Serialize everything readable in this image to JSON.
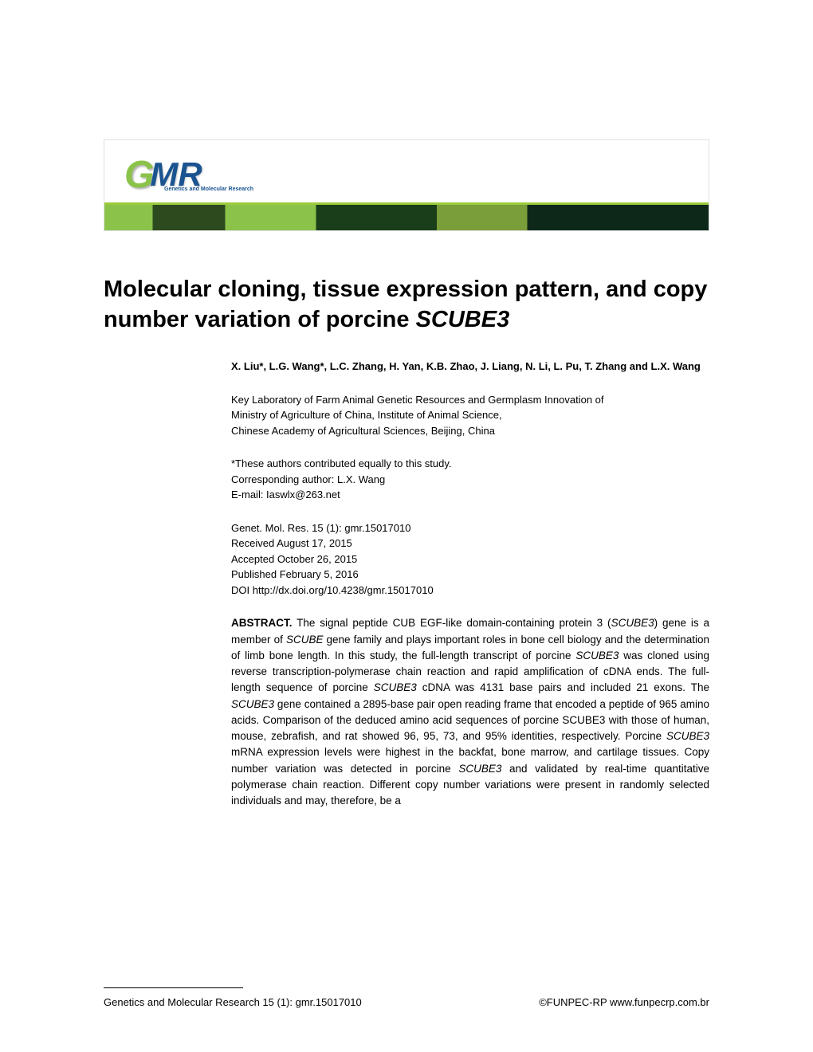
{
  "banner": {
    "logo_g": "G",
    "logo_mr": "MR",
    "logo_subtitle": "Genetics and Molecular Research"
  },
  "title": {
    "line1": "Molecular cloning, tissue expression pattern, and copy number variation of porcine ",
    "italic": "SCUBE3"
  },
  "authors": "X. Liu*, L.G. Wang*, L.C. Zhang, H. Yan, K.B. Zhao, J. Liang, N. Li, L. Pu, T. Zhang and L.X. Wang",
  "affiliation": {
    "line1": "Key Laboratory of Farm Animal Genetic Resources and Germplasm Innovation of",
    "line2": "Ministry of Agriculture of China, Institute of Animal Science,",
    "line3": "Chinese Academy of Agricultural Sciences, Beijing, China"
  },
  "correspondence": {
    "line1": "*These authors contributed equally to this study.",
    "line2": "Corresponding author: L.X. Wang",
    "line3": "E-mail: Iaswlx@263.net"
  },
  "citation": {
    "line1": "Genet. Mol. Res. 15 (1): gmr.15017010",
    "line2": "Received August 17, 2015",
    "line3": "Accepted October 26, 2015",
    "line4": "Published February 5, 2016",
    "line5": "DOI http://dx.doi.org/10.4238/gmr.15017010"
  },
  "abstract": {
    "label": "ABSTRACT.",
    "p1a": " The signal peptide CUB EGF-like domain-containing protein 3 (",
    "p1b": "SCUBE3",
    "p1c": ") gene is a member of ",
    "p1d": "SCUBE",
    "p1e": " gene family and plays important roles in bone cell biology and the determination of limb bone length. In this study, the full-length transcript of porcine ",
    "p1f": "SCUBE3",
    "p1g": " was cloned using reverse transcription-polymerase chain reaction and rapid amplification of cDNA ends. The full-length sequence of porcine ",
    "p1h": "SCUBE3",
    "p1i": " cDNA was 4131 base pairs and included 21 exons. The ",
    "p1j": "SCUBE3",
    "p1k": " gene contained a 2895-base pair open reading frame that encoded a peptide of 965 amino acids. Comparison of the deduced amino acid sequences of porcine SCUBE3 with those of human, mouse, zebrafish, and rat showed 96, 95, 73, and 95% identities, respectively. Porcine ",
    "p1l": "SCUBE3",
    "p1m": " mRNA expression levels were highest in the backfat, bone marrow, and cartilage tissues. Copy number variation was detected in porcine ",
    "p1n": "SCUBE3",
    "p1o": " and validated by real-time quantitative polymerase chain reaction. Different copy number variations were present in randomly selected individuals and may, therefore, be a"
  },
  "footer": {
    "left": "Genetics and Molecular Research 15 (1): gmr.15017010",
    "right": "©FUNPEC-RP www.funpecrp.com.br"
  },
  "colors": {
    "background": "#ffffff",
    "text": "#000000",
    "logo_green": "#8bc34a",
    "logo_blue": "#1a5490"
  }
}
